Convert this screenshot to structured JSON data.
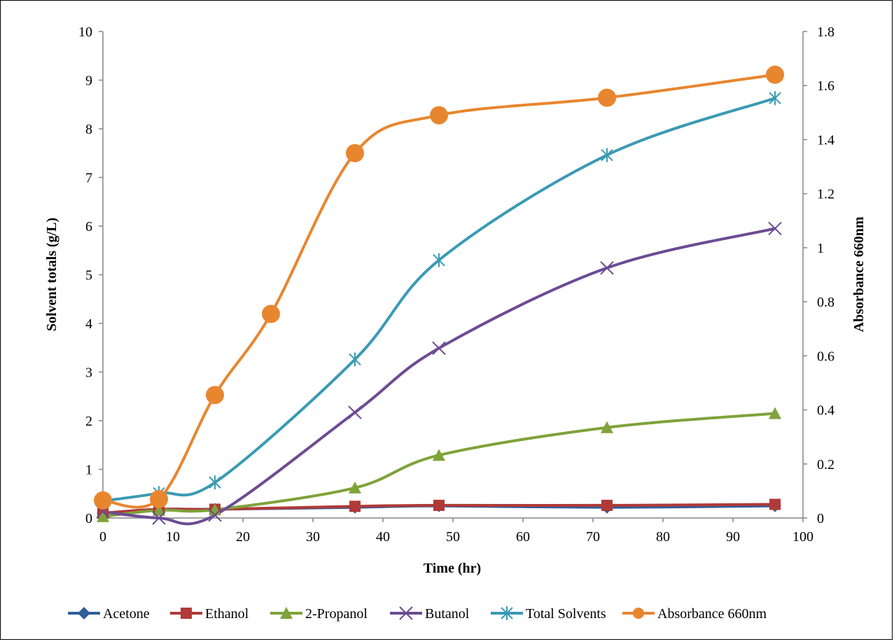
{
  "chart_data": {
    "type": "line",
    "title": "",
    "xlabel": "Time (hr)",
    "ylabel": "Solvent totals (g/L)",
    "y2label": "Absorbance 660nm",
    "xlim": [
      0,
      100
    ],
    "ylim": [
      0,
      10
    ],
    "y2lim": [
      0,
      1.8
    ],
    "x_ticks": [
      "0",
      "10",
      "20",
      "30",
      "40",
      "50",
      "60",
      "70",
      "80",
      "90",
      "100"
    ],
    "y_ticks": [
      "0",
      "1",
      "2",
      "3",
      "4",
      "5",
      "6",
      "7",
      "8",
      "9",
      "10"
    ],
    "y2_ticks": [
      "0",
      "0.2",
      "0.4",
      "0.6",
      "0.8",
      "1",
      "1.2",
      "1.4",
      "1.6",
      "1.8"
    ],
    "grid": false,
    "legend_position": "bottom",
    "series": [
      {
        "name": "Acetone",
        "axis": "left",
        "color": "#2E5E9B",
        "marker": "diamond",
        "x": [
          0,
          8,
          16,
          36,
          48,
          72,
          96
        ],
        "y": [
          0.1,
          0.18,
          0.18,
          0.22,
          0.25,
          0.22,
          0.25
        ]
      },
      {
        "name": "Ethanol",
        "axis": "left",
        "color": "#B03A38",
        "marker": "square",
        "x": [
          0,
          8,
          16,
          36,
          48,
          72,
          96
        ],
        "y": [
          0.1,
          0.18,
          0.18,
          0.24,
          0.26,
          0.26,
          0.28
        ]
      },
      {
        "name": "2-Propanol",
        "axis": "left",
        "color": "#7FA23A",
        "marker": "triangle",
        "x": [
          0,
          8,
          16,
          36,
          48,
          72,
          96
        ],
        "y": [
          0.03,
          0.16,
          0.17,
          0.62,
          1.29,
          1.86,
          2.15
        ]
      },
      {
        "name": "Butanol",
        "axis": "left",
        "color": "#6C4B93",
        "marker": "x",
        "x": [
          0,
          8,
          16,
          36,
          48,
          72,
          96
        ],
        "y": [
          0.13,
          0.0,
          0.06,
          2.17,
          3.49,
          5.14,
          5.95
        ]
      },
      {
        "name": "Total Solvents",
        "axis": "left",
        "color": "#3A9AB4",
        "marker": "star",
        "x": [
          0,
          8,
          16,
          36,
          48,
          72,
          96
        ],
        "y": [
          0.35,
          0.51,
          0.73,
          3.26,
          5.3,
          7.46,
          8.63
        ]
      },
      {
        "name": "Absorbance 660nm",
        "axis": "right",
        "color": "#E8862F",
        "marker": "circle",
        "x": [
          0,
          8,
          16,
          24,
          36,
          48,
          72,
          96
        ],
        "y": [
          0.065,
          0.07,
          0.455,
          0.755,
          1.35,
          1.49,
          1.555,
          1.64
        ]
      }
    ]
  }
}
